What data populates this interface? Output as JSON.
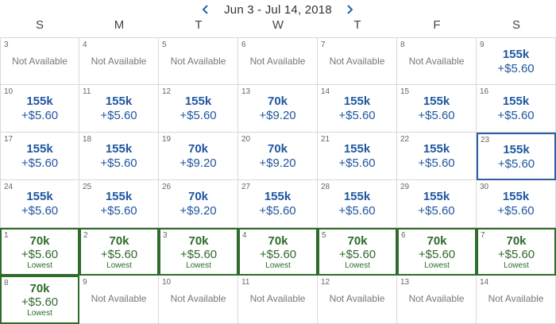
{
  "header": {
    "range": "Jun 3 - Jul 14, 2018",
    "prev_icon": "chevron-left-icon",
    "next_icon": "chevron-right-icon",
    "arrow_color": "#2a5fa8"
  },
  "weekdays": [
    "S",
    "M",
    "T",
    "W",
    "T",
    "F",
    "S"
  ],
  "labels": {
    "not_available": "Not Available",
    "lowest": "Lowest"
  },
  "colors": {
    "available": "#1f57a0",
    "lowest": "#2f6b2b",
    "selected_border": "#2a5fa8"
  },
  "selected_day": "23",
  "days": [
    {
      "day": "3",
      "status": "na"
    },
    {
      "day": "4",
      "status": "na"
    },
    {
      "day": "5",
      "status": "na"
    },
    {
      "day": "6",
      "status": "na"
    },
    {
      "day": "7",
      "status": "na"
    },
    {
      "day": "8",
      "status": "na"
    },
    {
      "day": "9",
      "status": "available",
      "miles": "155k",
      "fee": "+$5.60"
    },
    {
      "day": "10",
      "status": "available",
      "miles": "155k",
      "fee": "+$5.60"
    },
    {
      "day": "11",
      "status": "available",
      "miles": "155k",
      "fee": "+$5.60"
    },
    {
      "day": "12",
      "status": "available",
      "miles": "155k",
      "fee": "+$5.60"
    },
    {
      "day": "13",
      "status": "available",
      "miles": "70k",
      "fee": "+$9.20"
    },
    {
      "day": "14",
      "status": "available",
      "miles": "155k",
      "fee": "+$5.60"
    },
    {
      "day": "15",
      "status": "available",
      "miles": "155k",
      "fee": "+$5.60"
    },
    {
      "day": "16",
      "status": "available",
      "miles": "155k",
      "fee": "+$5.60"
    },
    {
      "day": "17",
      "status": "available",
      "miles": "155k",
      "fee": "+$5.60"
    },
    {
      "day": "18",
      "status": "available",
      "miles": "155k",
      "fee": "+$5.60"
    },
    {
      "day": "19",
      "status": "available",
      "miles": "70k",
      "fee": "+$9.20"
    },
    {
      "day": "20",
      "status": "available",
      "miles": "70k",
      "fee": "+$9.20"
    },
    {
      "day": "21",
      "status": "available",
      "miles": "155k",
      "fee": "+$5.60"
    },
    {
      "day": "22",
      "status": "available",
      "miles": "155k",
      "fee": "+$5.60"
    },
    {
      "day": "23",
      "status": "available",
      "miles": "155k",
      "fee": "+$5.60"
    },
    {
      "day": "24",
      "status": "available",
      "miles": "155k",
      "fee": "+$5.60"
    },
    {
      "day": "25",
      "status": "available",
      "miles": "155k",
      "fee": "+$5.60"
    },
    {
      "day": "26",
      "status": "available",
      "miles": "70k",
      "fee": "+$9.20"
    },
    {
      "day": "27",
      "status": "available",
      "miles": "155k",
      "fee": "+$5.60"
    },
    {
      "day": "28",
      "status": "available",
      "miles": "155k",
      "fee": "+$5.60"
    },
    {
      "day": "29",
      "status": "available",
      "miles": "155k",
      "fee": "+$5.60"
    },
    {
      "day": "30",
      "status": "available",
      "miles": "155k",
      "fee": "+$5.60"
    },
    {
      "day": "1",
      "status": "lowest",
      "miles": "70k",
      "fee": "+$5.60"
    },
    {
      "day": "2",
      "status": "lowest",
      "miles": "70k",
      "fee": "+$5.60"
    },
    {
      "day": "3",
      "status": "lowest",
      "miles": "70k",
      "fee": "+$5.60"
    },
    {
      "day": "4",
      "status": "lowest",
      "miles": "70k",
      "fee": "+$5.60"
    },
    {
      "day": "5",
      "status": "lowest",
      "miles": "70k",
      "fee": "+$5.60"
    },
    {
      "day": "6",
      "status": "lowest",
      "miles": "70k",
      "fee": "+$5.60"
    },
    {
      "day": "7",
      "status": "lowest",
      "miles": "70k",
      "fee": "+$5.60"
    },
    {
      "day": "8",
      "status": "lowest",
      "miles": "70k",
      "fee": "+$5.60"
    },
    {
      "day": "9",
      "status": "na"
    },
    {
      "day": "10",
      "status": "na"
    },
    {
      "day": "11",
      "status": "na"
    },
    {
      "day": "12",
      "status": "na"
    },
    {
      "day": "13",
      "status": "na"
    },
    {
      "day": "14",
      "status": "na"
    }
  ]
}
